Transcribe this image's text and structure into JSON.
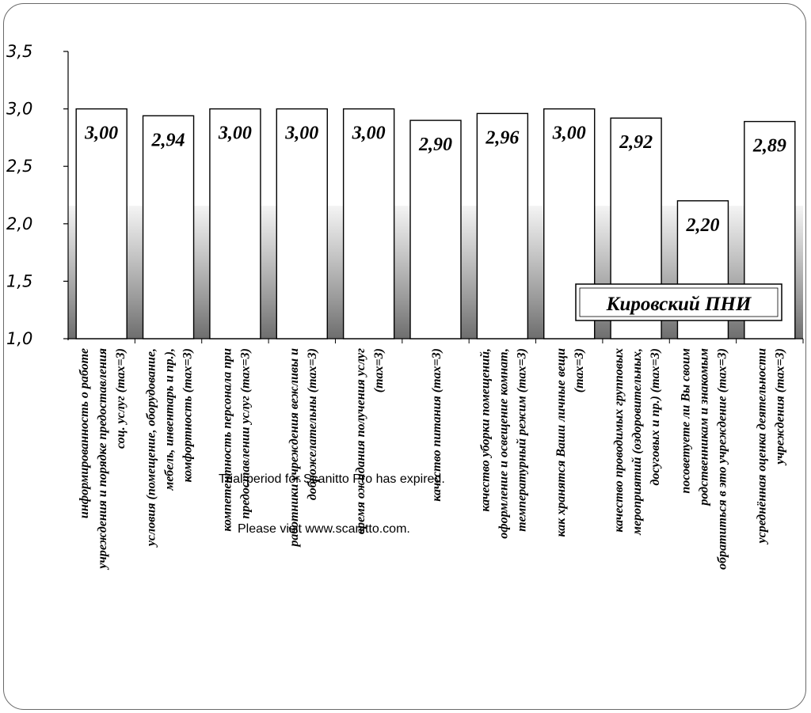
{
  "chart_data": {
    "type": "bar",
    "categories": [
      [
        "информированность о работе",
        "учреждения и порядке предоставления",
        "соц. услуг (max=3)"
      ],
      [
        "условия (помещение, оборудование,",
        "мебель, инвентарь и пр.),",
        "комфортность (max=3)"
      ],
      [
        "компетентность персонала при",
        "предоставлении услуг (max=3)"
      ],
      [
        "работники учреждения вежливы и",
        "доброжелательны (max=3)"
      ],
      [
        "время ожидания получения услуг",
        "(max=3)"
      ],
      [
        "качество питания (max=3)"
      ],
      [
        "качество уборки помещений,",
        "оформление и освещение комнат,",
        "температурный режим (max=3)"
      ],
      [
        "как хранятся Ваши личные вещи",
        "(max=3)"
      ],
      [
        "качество проводимых групповых",
        "мероприятий (оздоровительных,",
        "досуговых и пр.) (max=3)"
      ],
      [
        "посоветуете ли Вы своим",
        "родственникам и знакомым",
        "обратиться в это учреждение (max=3)"
      ],
      [
        "усреднённая оценка деятельности",
        "учреждения (max=3)"
      ]
    ],
    "values": [
      3.0,
      2.94,
      3.0,
      3.0,
      3.0,
      2.9,
      2.96,
      3.0,
      2.92,
      2.2,
      2.89
    ],
    "value_labels": [
      "3,00",
      "2,94",
      "3,00",
      "3,00",
      "3,00",
      "2,90",
      "2,96",
      "3,00",
      "2,92",
      "2,20",
      "2,89"
    ],
    "yticks": [
      "1,0",
      "1,5",
      "2,0",
      "2,5",
      "3,0",
      "3,5"
    ],
    "ylim": [
      1.0,
      3.5
    ],
    "annotation": "Кировский ПНИ",
    "colors": {
      "bar_fill": "#ffffff",
      "bar_stroke": "#000000",
      "background_dark": "#7a7a7a",
      "background_light": "#f2f2f2"
    }
  },
  "watermark": {
    "line1": "Trial period for Scanitto Pro has expired.",
    "line2": "Please visit www.scanitto.com."
  }
}
